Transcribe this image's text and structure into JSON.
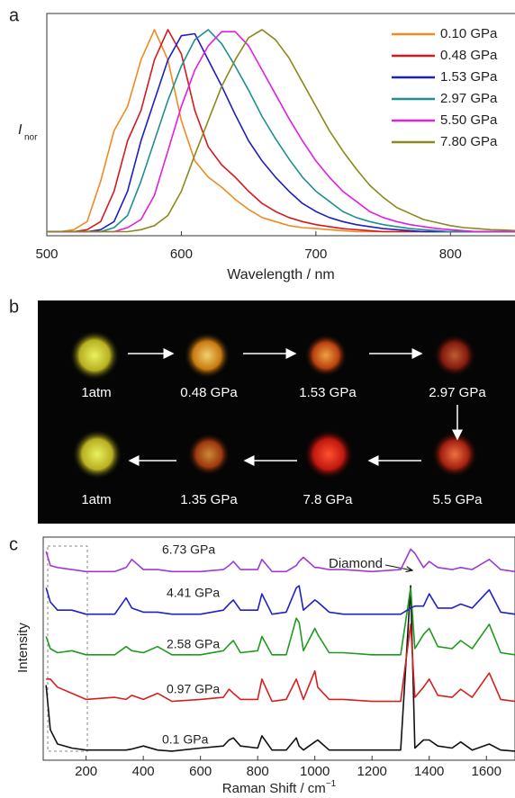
{
  "panel_labels": [
    "a",
    "b",
    "c"
  ],
  "chart_data": [
    {
      "type": "line",
      "y_label": "I",
      "y_label_sub": "nor",
      "x_label": "Wavelength / nm",
      "xlim": [
        500,
        850
      ],
      "xticks": [
        500,
        600,
        700,
        800
      ],
      "ylim": [
        -0.02,
        1.08
      ],
      "x": [
        500,
        510,
        520,
        530,
        540,
        550,
        560,
        570,
        580,
        590,
        600,
        610,
        620,
        630,
        640,
        650,
        660,
        670,
        680,
        690,
        700,
        710,
        720,
        730,
        740,
        750,
        760,
        770,
        780,
        790,
        800,
        810,
        820,
        830,
        840,
        850
      ],
      "series": [
        {
          "name": "0.10 GPa",
          "color": "#f08a24",
          "values": [
            0,
            0,
            0.01,
            0.05,
            0.25,
            0.5,
            0.62,
            0.85,
            1.0,
            0.85,
            0.55,
            0.35,
            0.27,
            0.22,
            0.16,
            0.11,
            0.07,
            0.05,
            0.03,
            0.02,
            0.015,
            0.01,
            0.005,
            0,
            0,
            0,
            0,
            0,
            0,
            0,
            0,
            0,
            0,
            0,
            0,
            0
          ]
        },
        {
          "name": "0.48 GPa",
          "color": "#d7191c",
          "values": [
            0,
            0,
            0,
            0.01,
            0.05,
            0.2,
            0.45,
            0.6,
            0.85,
            1.0,
            0.88,
            0.6,
            0.42,
            0.33,
            0.27,
            0.2,
            0.14,
            0.1,
            0.07,
            0.05,
            0.035,
            0.025,
            0.015,
            0.01,
            0.005,
            0,
            0,
            0,
            0,
            0,
            0,
            0,
            0,
            0,
            0,
            0
          ]
        },
        {
          "name": "1.53 GPa",
          "color": "#1f1fbf",
          "values": [
            0,
            0,
            0,
            0,
            0.01,
            0.05,
            0.2,
            0.45,
            0.65,
            0.85,
            0.97,
            0.98,
            0.85,
            0.72,
            0.58,
            0.45,
            0.35,
            0.27,
            0.2,
            0.14,
            0.1,
            0.07,
            0.05,
            0.035,
            0.025,
            0.015,
            0.01,
            0.005,
            0,
            0,
            0,
            0,
            0,
            0,
            0,
            0
          ]
        },
        {
          "name": "2.97 GPa",
          "color": "#1f8f8f",
          "values": [
            0,
            0,
            0,
            0,
            0,
            0.02,
            0.08,
            0.25,
            0.45,
            0.65,
            0.82,
            0.95,
            1.0,
            0.93,
            0.82,
            0.7,
            0.57,
            0.46,
            0.36,
            0.27,
            0.2,
            0.15,
            0.1,
            0.07,
            0.05,
            0.035,
            0.025,
            0.015,
            0.01,
            0.005,
            0,
            0,
            0,
            0,
            0,
            0
          ]
        },
        {
          "name": "5.50 GPa",
          "color": "#e21ee0",
          "values": [
            0,
            0,
            0,
            0,
            0,
            0,
            0.02,
            0.06,
            0.18,
            0.4,
            0.62,
            0.8,
            0.92,
            0.99,
            0.99,
            0.92,
            0.8,
            0.68,
            0.56,
            0.45,
            0.35,
            0.27,
            0.2,
            0.15,
            0.1,
            0.07,
            0.05,
            0.035,
            0.025,
            0.015,
            0.01,
            0.005,
            0,
            0,
            0,
            0
          ]
        },
        {
          "name": "7.80 GPa",
          "color": "#8a8a1a",
          "values": [
            0,
            0,
            0,
            0,
            0,
            0,
            0,
            0.01,
            0.03,
            0.08,
            0.2,
            0.38,
            0.55,
            0.72,
            0.85,
            0.96,
            1.0,
            0.95,
            0.86,
            0.74,
            0.62,
            0.5,
            0.4,
            0.31,
            0.23,
            0.17,
            0.12,
            0.09,
            0.06,
            0.045,
            0.03,
            0.02,
            0.015,
            0.01,
            0.008,
            0.005
          ]
        }
      ]
    },
    {
      "type": "line",
      "y_label": "Intensity",
      "x_label": "Raman Shift / cm",
      "x_label_sup": "−1",
      "xlim": [
        50,
        1700
      ],
      "xticks": [
        200,
        400,
        600,
        800,
        1000,
        1200,
        1400,
        1600
      ],
      "ylim": [
        0,
        11
      ],
      "annotation": "Diamond",
      "x": [
        60,
        75,
        100,
        150,
        200,
        300,
        340,
        360,
        400,
        450,
        500,
        600,
        680,
        700,
        715,
        740,
        800,
        815,
        850,
        900,
        935,
        945,
        960,
        1000,
        1010,
        1050,
        1100,
        1200,
        1300,
        1335,
        1350,
        1380,
        1400,
        1430,
        1480,
        1510,
        1550,
        1610,
        1650,
        1700
      ],
      "series": [
        {
          "name": "0.1 GPa",
          "color": "#111111",
          "values": [
            3.7,
            1.5,
            0.8,
            0.6,
            0.5,
            0.5,
            0.5,
            0.55,
            0.7,
            0.5,
            0.45,
            0.6,
            0.7,
            1.0,
            1.1,
            0.7,
            0.6,
            1.2,
            0.5,
            0.5,
            1.1,
            0.7,
            0.5,
            0.9,
            1.0,
            0.5,
            0.5,
            0.5,
            0.5,
            8.6,
            0.6,
            1.0,
            1.0,
            0.7,
            0.6,
            0.9,
            0.5,
            0.8,
            0.5,
            0.45
          ]
        },
        {
          "name": "0.97 GPa",
          "color": "#d62020",
          "values": [
            4.0,
            4.0,
            3.6,
            3.3,
            3.0,
            3.1,
            3.0,
            3.2,
            3.0,
            3.3,
            2.9,
            3.0,
            3.1,
            3.5,
            3.3,
            3.0,
            3.0,
            4.0,
            2.9,
            3.0,
            4.0,
            3.6,
            3.0,
            4.4,
            3.6,
            3.0,
            3.0,
            2.9,
            2.9,
            6.7,
            3.1,
            3.6,
            4.0,
            3.2,
            3.1,
            3.5,
            3.1,
            4.3,
            3.0,
            2.9
          ]
        },
        {
          "name": "2.58 GPa",
          "color": "#1f9a1f",
          "values": [
            6.1,
            5.5,
            5.3,
            5.4,
            5.2,
            5.2,
            5.6,
            5.4,
            5.3,
            5.6,
            5.2,
            5.2,
            5.4,
            5.7,
            5.9,
            5.3,
            5.4,
            6.1,
            5.2,
            5.2,
            7.0,
            6.8,
            5.4,
            6.5,
            6.2,
            5.3,
            5.3,
            5.2,
            5.2,
            8.5,
            5.5,
            6.2,
            6.5,
            5.6,
            5.5,
            5.9,
            5.5,
            6.7,
            5.3,
            5.2
          ]
        },
        {
          "name": "4.41 GPa",
          "color": "#2020c8",
          "values": [
            8.5,
            7.8,
            7.4,
            7.4,
            7.2,
            7.2,
            8.0,
            7.5,
            7.3,
            7.3,
            7.2,
            7.2,
            7.4,
            7.7,
            7.9,
            7.4,
            7.4,
            8.2,
            7.2,
            7.3,
            8.5,
            8.6,
            7.4,
            7.9,
            7.8,
            7.3,
            7.2,
            7.2,
            7.2,
            7.5,
            7.6,
            7.6,
            8.2,
            7.5,
            7.5,
            7.7,
            7.5,
            8.4,
            7.3,
            7.2
          ]
        },
        {
          "name": "6.73 GPa",
          "color": "#9a3ad8",
          "values": [
            10.3,
            9.6,
            9.5,
            9.4,
            9.3,
            9.3,
            9.5,
            9.9,
            9.4,
            9.4,
            9.3,
            9.3,
            9.4,
            9.6,
            9.8,
            9.4,
            9.4,
            9.9,
            9.3,
            9.3,
            9.6,
            9.8,
            10.0,
            9.5,
            9.5,
            9.4,
            9.4,
            9.3,
            9.4,
            10.4,
            10.2,
            9.5,
            9.8,
            9.5,
            9.4,
            9.5,
            9.4,
            9.9,
            9.4,
            9.3
          ]
        }
      ]
    }
  ],
  "photos": {
    "row1": [
      "1atm",
      "0.48 GPa",
      "1.53 GPa",
      "2.97 GPa"
    ],
    "row2": [
      "1atm",
      "1.35 GPa",
      "7.8 GPa",
      "5.5 GPa"
    ]
  }
}
